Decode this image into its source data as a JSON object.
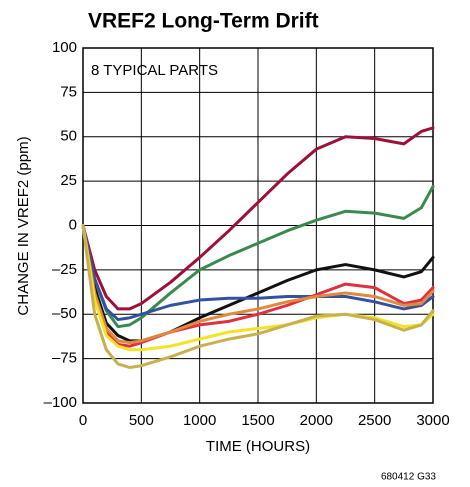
{
  "chart_data": {
    "type": "line",
    "title": "VREF2 Long-Term Drift",
    "annotation": "8 TYPICAL PARTS",
    "footnote": "680412 G33",
    "x_label": "TIME (HOURS)",
    "y_label": "CHANGE IN VREF2 (ppm)",
    "x": [
      0,
      100,
      200,
      300,
      400,
      500,
      750,
      1000,
      1250,
      1500,
      1750,
      2000,
      2250,
      2500,
      2750,
      2900,
      3000
    ],
    "series": [
      {
        "color": "#9e1038",
        "values": [
          0,
          -25,
          -40,
          -47,
          -47,
          -44,
          -32,
          -18,
          -3,
          13,
          29,
          43,
          50,
          49,
          46,
          53,
          55
        ]
      },
      {
        "color": "#3a8a4e",
        "values": [
          0,
          -30,
          -48,
          -57,
          -56,
          -52,
          -38,
          -25,
          -17,
          -10,
          -3,
          3,
          8,
          7,
          4,
          10,
          22
        ]
      },
      {
        "color": "#111111",
        "values": [
          0,
          -35,
          -55,
          -62,
          -65,
          -65,
          -60,
          -52,
          -45,
          -38,
          -31,
          -25,
          -22,
          -25,
          -29,
          -26,
          -18
        ]
      },
      {
        "color": "#3450a0",
        "values": [
          0,
          -30,
          -47,
          -53,
          -52,
          -50,
          -45,
          -42,
          -41,
          -41,
          -40,
          -40,
          -40,
          -43,
          -47,
          -45,
          -40
        ]
      },
      {
        "color": "#e0303e",
        "values": [
          0,
          -40,
          -60,
          -67,
          -68,
          -66,
          -60,
          -56,
          -54,
          -50,
          -45,
          -39,
          -33,
          -35,
          -44,
          -42,
          -35
        ]
      },
      {
        "color": "#e08a40",
        "values": [
          0,
          -38,
          -58,
          -65,
          -66,
          -65,
          -60,
          -54,
          -50,
          -47,
          -43,
          -40,
          -38,
          -40,
          -45,
          -44,
          -37
        ]
      },
      {
        "color": "#f2e424",
        "values": [
          0,
          -42,
          -62,
          -68,
          -70,
          -70,
          -68,
          -64,
          -60,
          -58,
          -56,
          -52,
          -50,
          -52,
          -57,
          -56,
          -50
        ]
      },
      {
        "color": "#c8b050",
        "values": [
          0,
          -50,
          -70,
          -78,
          -80,
          -79,
          -74,
          -68,
          -64,
          -61,
          -56,
          -51,
          -50,
          -53,
          -59,
          -56,
          -48
        ]
      }
    ],
    "xlim": [
      0,
      3000
    ],
    "xticks": [
      0,
      500,
      1000,
      1500,
      2000,
      2500,
      3000
    ],
    "ylim": [
      -100,
      100
    ],
    "yticks": [
      {
        "value": -100,
        "label": "–100"
      },
      {
        "value": -75,
        "label": "–75"
      },
      {
        "value": -50,
        "label": "–50"
      },
      {
        "value": -25,
        "label": "–25"
      },
      0,
      25,
      50,
      75,
      100
    ],
    "grid": true
  }
}
